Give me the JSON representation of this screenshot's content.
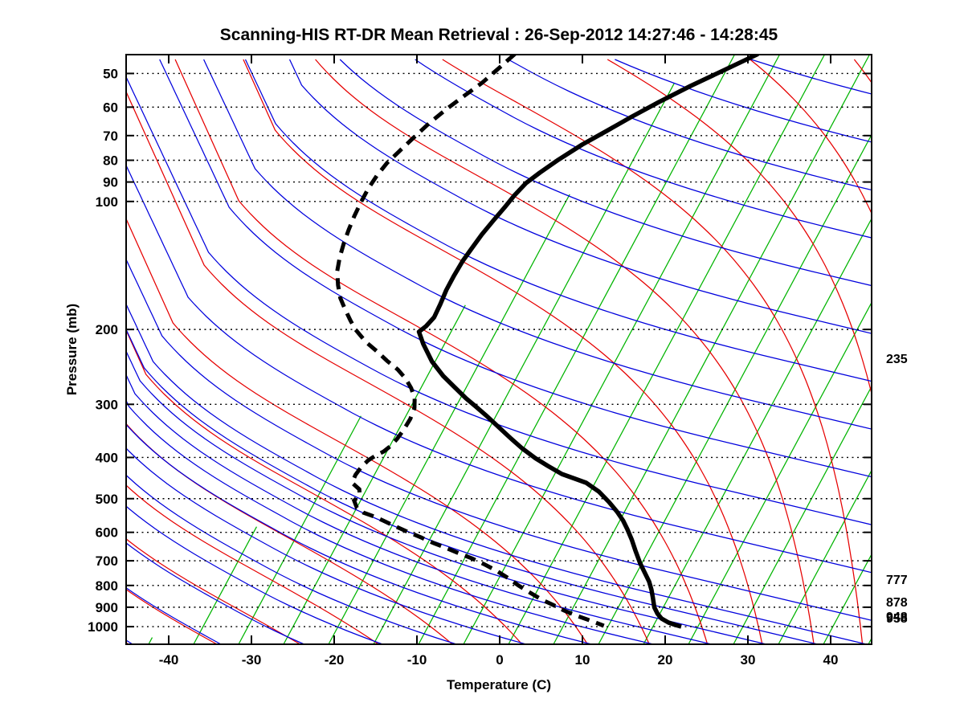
{
  "title": "Scanning-HIS RT-DR Mean Retrieval : 26-Sep-2012 14:27:46 - 14:28:45",
  "axes": {
    "x_label": "Temperature (C)",
    "y_label": "Pressure (mb)",
    "temp_ticks": [
      -40,
      -30,
      -20,
      -10,
      0,
      10,
      20,
      30,
      40
    ],
    "pressure_ticks": [
      50,
      60,
      70,
      80,
      90,
      100,
      200,
      300,
      400,
      500,
      600,
      700,
      800,
      900,
      1000
    ]
  },
  "right_pressure_labels": [
    "235",
    "777",
    "878",
    "948",
    "958"
  ],
  "colors": {
    "isotherm": "#00b400",
    "dry_adiabat": "#e60000",
    "moist_adiabat": "#0000dd",
    "isobar": "#000000",
    "temperature_curve": "#000000",
    "dewpoint_curve": "#000000",
    "background": "#ffffff"
  },
  "chart_data": {
    "type": "line",
    "title": "Scanning-HIS RT-DR Mean Retrieval : 26-Sep-2012 14:27:46 - 14:28:45",
    "xlabel": "Temperature (C)",
    "ylabel": "Pressure (mb)",
    "x_ticks": [
      -40,
      -30,
      -20,
      -10,
      0,
      10,
      20,
      30,
      40
    ],
    "y_ticks": [
      50,
      60,
      70,
      80,
      90,
      100,
      200,
      300,
      400,
      500,
      600,
      700,
      800,
      900,
      1000
    ],
    "y_scale": "log-pressure-inverted",
    "y_range": [
      45,
      1100
    ],
    "skewed_isotherms": true,
    "grid": "dotted-isobars",
    "legend_position": "none",
    "right_pressure_labels": [
      235,
      777,
      878,
      948,
      958
    ],
    "background_line_families": [
      {
        "name": "isotherms",
        "color": "#00b400",
        "style": "thin-solid"
      },
      {
        "name": "dry-adiabats",
        "color": "#e60000",
        "style": "thin-solid"
      },
      {
        "name": "moist-adiabats",
        "color": "#0000dd",
        "style": "thin-solid"
      }
    ],
    "series": [
      {
        "name": "Temperature",
        "style": "solid-thick",
        "color": "#000000",
        "points": [
          [
            -7.0,
            45
          ],
          [
            -10.2,
            49.3
          ],
          [
            -13.1,
            53.5
          ],
          [
            -15.9,
            58.4
          ],
          [
            -18.3,
            63.4
          ],
          [
            -20.3,
            68.2
          ],
          [
            -22.4,
            73.5
          ],
          [
            -24.3,
            79.8
          ],
          [
            -25.7,
            85.6
          ],
          [
            -26.7,
            90.6
          ],
          [
            -27.3,
            96.7
          ],
          [
            -27.7,
            103.2
          ],
          [
            -28.2,
            110.6
          ],
          [
            -28.7,
            119.6
          ],
          [
            -29.0,
            128.3
          ],
          [
            -29.3,
            138.1
          ],
          [
            -29.4,
            149.4
          ],
          [
            -29.4,
            161.5
          ],
          [
            -29.2,
            174.6
          ],
          [
            -29.1,
            187.3
          ],
          [
            -29.5,
            196.4
          ],
          [
            -30.0,
            202.5
          ],
          [
            -28.7,
            216.2
          ],
          [
            -26.5,
            237.9
          ],
          [
            -24.2,
            257.3
          ],
          [
            -22.1,
            273.4
          ],
          [
            -20.0,
            290.5
          ],
          [
            -18.3,
            303.5
          ],
          [
            -16.5,
            318.3
          ],
          [
            -14.3,
            338.4
          ],
          [
            -12.1,
            359.6
          ],
          [
            -10.0,
            380.5
          ],
          [
            -7.8,
            401.1
          ],
          [
            -5.7,
            418.9
          ],
          [
            -3.5,
            437.5
          ],
          [
            -1.6,
            449.0
          ],
          [
            0.0,
            458.9
          ],
          [
            2.1,
            481.3
          ],
          [
            4.0,
            509.3
          ],
          [
            5.6,
            536.7
          ],
          [
            6.9,
            563.0
          ],
          [
            8.0,
            590.5
          ],
          [
            9.2,
            624.8
          ],
          [
            10.3,
            661.0
          ],
          [
            11.7,
            708.4
          ],
          [
            12.9,
            746.5
          ],
          [
            14.0,
            783.3
          ],
          [
            14.8,
            818.4
          ],
          [
            15.5,
            854.8
          ],
          [
            16.3,
            900.5
          ],
          [
            17.1,
            932.4
          ],
          [
            17.9,
            957.1
          ],
          [
            19.0,
            978.1
          ],
          [
            20.0,
            991.0
          ],
          [
            20.8,
            999.6
          ]
        ]
      },
      {
        "name": "Dew Point",
        "style": "dashed-thick",
        "color": "#000000",
        "points": [
          [
            -36.4,
            45
          ],
          [
            -37.4,
            48.5
          ],
          [
            -38.5,
            52.6
          ],
          [
            -39.8,
            56.4
          ],
          [
            -41.1,
            60.7
          ],
          [
            -42.3,
            65.6
          ],
          [
            -43.3,
            71.3
          ],
          [
            -44.1,
            76.4
          ],
          [
            -44.8,
            81.2
          ],
          [
            -45.2,
            87.1
          ],
          [
            -45.4,
            93.3
          ],
          [
            -45.4,
            100.5
          ],
          [
            -45.3,
            108.2
          ],
          [
            -45.1,
            116.5
          ],
          [
            -44.8,
            125.6
          ],
          [
            -44.4,
            135.3
          ],
          [
            -43.8,
            145.8
          ],
          [
            -42.8,
            157.3
          ],
          [
            -41.7,
            168.6
          ],
          [
            -40.4,
            179.2
          ],
          [
            -39.0,
            190.6
          ],
          [
            -37.8,
            200.2
          ],
          [
            -35.7,
            214.3
          ],
          [
            -33.7,
            225.8
          ],
          [
            -32.0,
            236.9
          ],
          [
            -30.1,
            248.6
          ],
          [
            -28.6,
            260.8
          ],
          [
            -27.3,
            274.6
          ],
          [
            -26.2,
            290.5
          ],
          [
            -25.6,
            306.1
          ],
          [
            -25.4,
            324.7
          ],
          [
            -25.5,
            344.3
          ],
          [
            -25.7,
            361.2
          ],
          [
            -26.0,
            375.5
          ],
          [
            -26.5,
            387.2
          ],
          [
            -27.2,
            395.7
          ],
          [
            -27.8,
            406.2
          ],
          [
            -28.2,
            420.7
          ],
          [
            -28.4,
            439.4
          ],
          [
            -28.3,
            458.9
          ],
          [
            -27.0,
            475.3
          ],
          [
            -26.6,
            490.0
          ],
          [
            -26.9,
            505.1
          ],
          [
            -26.1,
            525.4
          ],
          [
            -25.0,
            539.3
          ],
          [
            -23.7,
            548.8
          ],
          [
            -22.1,
            563.0
          ],
          [
            -20.3,
            580.4
          ],
          [
            -18.4,
            598.5
          ],
          [
            -16.4,
            617.1
          ],
          [
            -14.5,
            636.3
          ],
          [
            -12.7,
            653.1
          ],
          [
            -10.7,
            673.3
          ],
          [
            -8.9,
            691.1
          ],
          [
            -7.1,
            712.5
          ],
          [
            -5.2,
            737.8
          ],
          [
            -3.4,
            766.6
          ],
          [
            -1.5,
            800.8
          ],
          [
            0.4,
            833.0
          ],
          [
            2.1,
            862.3
          ],
          [
            3.9,
            889.0
          ],
          [
            5.6,
            916.5
          ],
          [
            7.3,
            940.6
          ],
          [
            8.9,
            960.9
          ],
          [
            10.2,
            978.1
          ],
          [
            11.4,
            995.3
          ]
        ]
      }
    ]
  }
}
